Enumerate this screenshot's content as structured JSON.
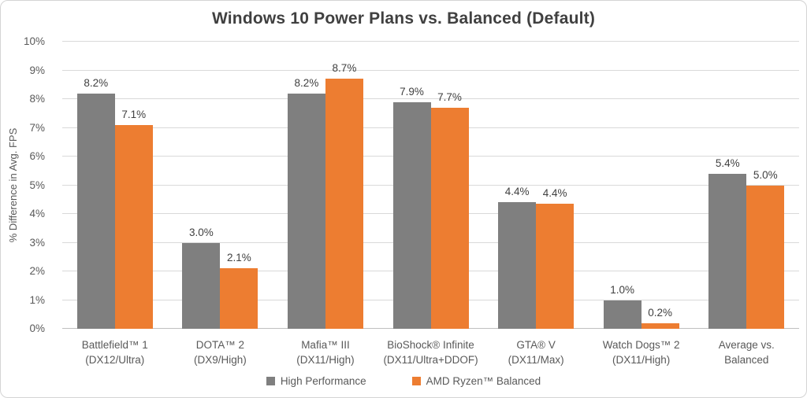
{
  "chart_data": {
    "type": "bar",
    "title": "Windows 10 Power Plans vs. Balanced (Default)",
    "ylabel": "% Difference in Avg. FPS",
    "ylim": [
      0,
      10
    ],
    "ytick_labels": [
      "0%",
      "1%",
      "2%",
      "3%",
      "4%",
      "5%",
      "6%",
      "7%",
      "8%",
      "9%",
      "10%"
    ],
    "grid": true,
    "legend_position": "bottom",
    "categories": [
      {
        "line1": "Battlefield™ 1",
        "line2": "(DX12/Ultra)"
      },
      {
        "line1": "DOTA™ 2",
        "line2": "(DX9/High)"
      },
      {
        "line1": "Mafia™ III",
        "line2": "(DX11/High)"
      },
      {
        "line1": "BioShock® Infinite",
        "line2": "(DX11/Ultra+DDOF)"
      },
      {
        "line1": "GTA® V",
        "line2": "(DX11/Max)"
      },
      {
        "line1": "Watch Dogs™ 2",
        "line2": "(DX11/High)"
      },
      {
        "line1": "Average vs.",
        "line2": "Balanced"
      }
    ],
    "series": [
      {
        "name": "High Performance",
        "color": "#7f7f7f",
        "values": [
          8.2,
          3.0,
          8.2,
          7.9,
          4.4,
          1.0,
          5.4
        ],
        "labels": [
          "8.2%",
          "3.0%",
          "8.2%",
          "7.9%",
          "4.4%",
          "1.0%",
          "5.4%"
        ]
      },
      {
        "name": "AMD Ryzen™ Balanced",
        "color": "#ed7d31",
        "values": [
          7.1,
          2.1,
          8.7,
          7.7,
          4.35,
          0.2,
          5.0
        ],
        "labels": [
          "7.1%",
          "2.1%",
          "8.7%",
          "7.7%",
          "4.4%",
          "0.2%",
          "5.0%"
        ]
      }
    ],
    "colors": {
      "background": "#ffffff",
      "border": "#d4d4d4",
      "gridline": "#d9d9d9",
      "axis_line": "#bfbfbf",
      "title_text": "#404040",
      "data_label_text": "#404040",
      "axis_text": "#595959"
    }
  }
}
